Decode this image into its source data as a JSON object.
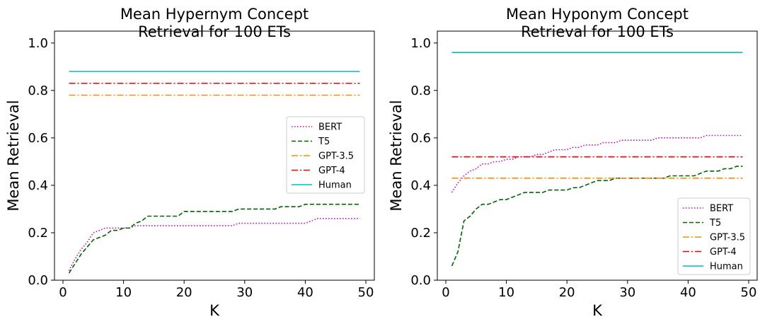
{
  "chart_data": [
    {
      "type": "line",
      "title": "Mean Hypernym Concept\nRetrieval for 100 ETs",
      "xlabel": "K",
      "ylabel": "Mean Retrieval",
      "xlim": [
        -1.4,
        51.4
      ],
      "ylim": [
        0.0,
        1.05
      ],
      "xticks": [
        0,
        10,
        20,
        30,
        40,
        50
      ],
      "yticks": [
        0.0,
        0.2,
        0.4,
        0.6,
        0.8,
        1.0
      ],
      "legend": "center-right",
      "series": [
        {
          "name": "BERT",
          "style": "dotted",
          "color": "#cc00cc",
          "x": [
            1,
            2,
            3,
            4,
            5,
            6,
            7,
            8,
            9,
            10,
            11,
            12,
            13,
            14,
            15,
            16,
            17,
            18,
            19,
            20,
            21,
            22,
            23,
            24,
            25,
            26,
            27,
            28,
            29,
            30,
            31,
            32,
            33,
            34,
            35,
            36,
            37,
            38,
            39,
            40,
            41,
            42,
            43,
            44,
            45,
            46,
            47,
            48,
            49
          ],
          "y": [
            0.04,
            0.09,
            0.13,
            0.16,
            0.2,
            0.21,
            0.22,
            0.22,
            0.22,
            0.22,
            0.22,
            0.23,
            0.23,
            0.23,
            0.23,
            0.23,
            0.23,
            0.23,
            0.23,
            0.23,
            0.23,
            0.23,
            0.23,
            0.23,
            0.23,
            0.23,
            0.23,
            0.23,
            0.24,
            0.24,
            0.24,
            0.24,
            0.24,
            0.24,
            0.24,
            0.24,
            0.24,
            0.24,
            0.24,
            0.24,
            0.25,
            0.26,
            0.26,
            0.26,
            0.26,
            0.26,
            0.26,
            0.26,
            0.26
          ]
        },
        {
          "name": "T5",
          "style": "dashed",
          "color": "#006400",
          "x": [
            1,
            2,
            3,
            4,
            5,
            6,
            7,
            8,
            9,
            10,
            11,
            12,
            13,
            14,
            15,
            16,
            17,
            18,
            19,
            20,
            21,
            22,
            23,
            24,
            25,
            26,
            27,
            28,
            29,
            30,
            31,
            32,
            33,
            34,
            35,
            36,
            37,
            38,
            39,
            40,
            41,
            42,
            43,
            44,
            45,
            46,
            47,
            48,
            49
          ],
          "y": [
            0.03,
            0.07,
            0.11,
            0.14,
            0.17,
            0.18,
            0.19,
            0.21,
            0.21,
            0.22,
            0.22,
            0.24,
            0.25,
            0.27,
            0.27,
            0.27,
            0.27,
            0.27,
            0.27,
            0.29,
            0.29,
            0.29,
            0.29,
            0.29,
            0.29,
            0.29,
            0.29,
            0.29,
            0.3,
            0.3,
            0.3,
            0.3,
            0.3,
            0.3,
            0.3,
            0.31,
            0.31,
            0.31,
            0.31,
            0.32,
            0.32,
            0.32,
            0.32,
            0.32,
            0.32,
            0.32,
            0.32,
            0.32,
            0.32
          ]
        },
        {
          "name": "GPT-3.5",
          "style": "dashdot",
          "color": "#ff8c00",
          "x": [
            1,
            49
          ],
          "y": [
            0.78,
            0.78
          ]
        },
        {
          "name": "GPT-4",
          "style": "dashdot",
          "color": "#ff0000",
          "x": [
            1,
            49
          ],
          "y": [
            0.83,
            0.83
          ]
        },
        {
          "name": "Human",
          "style": "solid",
          "color": "#00bfbf",
          "x": [
            1,
            49
          ],
          "y": [
            0.88,
            0.88
          ]
        }
      ]
    },
    {
      "type": "line",
      "title": "Mean Hyponym Concept\nRetrieval for 100 ETs",
      "xlabel": "K",
      "ylabel": "Mean Retrieval",
      "xlim": [
        -1.4,
        51.4
      ],
      "ylim": [
        0.0,
        1.05
      ],
      "xticks": [
        0,
        10,
        20,
        30,
        40,
        50
      ],
      "yticks": [
        0.0,
        0.2,
        0.4,
        0.6,
        0.8,
        1.0
      ],
      "legend": "lower-right",
      "series": [
        {
          "name": "BERT",
          "style": "dotted",
          "color": "#cc00cc",
          "x": [
            1,
            2,
            3,
            4,
            5,
            6,
            7,
            8,
            9,
            10,
            11,
            12,
            13,
            14,
            15,
            16,
            17,
            18,
            19,
            20,
            21,
            22,
            23,
            24,
            25,
            26,
            27,
            28,
            29,
            30,
            31,
            32,
            33,
            34,
            35,
            36,
            37,
            38,
            39,
            40,
            41,
            42,
            43,
            44,
            45,
            46,
            47,
            48,
            49
          ],
          "y": [
            0.37,
            0.41,
            0.44,
            0.46,
            0.47,
            0.49,
            0.49,
            0.5,
            0.5,
            0.51,
            0.51,
            0.52,
            0.52,
            0.52,
            0.53,
            0.53,
            0.54,
            0.55,
            0.55,
            0.55,
            0.56,
            0.56,
            0.57,
            0.57,
            0.57,
            0.58,
            0.58,
            0.58,
            0.59,
            0.59,
            0.59,
            0.59,
            0.59,
            0.59,
            0.6,
            0.6,
            0.6,
            0.6,
            0.6,
            0.6,
            0.6,
            0.6,
            0.61,
            0.61,
            0.61,
            0.61,
            0.61,
            0.61,
            0.61
          ]
        },
        {
          "name": "T5",
          "style": "dashed",
          "color": "#006400",
          "x": [
            1,
            2,
            3,
            4,
            5,
            6,
            7,
            8,
            9,
            10,
            11,
            12,
            13,
            14,
            15,
            16,
            17,
            18,
            19,
            20,
            21,
            22,
            23,
            24,
            25,
            26,
            27,
            28,
            29,
            30,
            31,
            32,
            33,
            34,
            35,
            36,
            37,
            38,
            39,
            40,
            41,
            42,
            43,
            44,
            45,
            46,
            47,
            48,
            49
          ],
          "y": [
            0.06,
            0.12,
            0.25,
            0.27,
            0.3,
            0.32,
            0.32,
            0.33,
            0.34,
            0.34,
            0.35,
            0.36,
            0.37,
            0.37,
            0.37,
            0.37,
            0.38,
            0.38,
            0.38,
            0.38,
            0.39,
            0.39,
            0.4,
            0.41,
            0.42,
            0.42,
            0.42,
            0.43,
            0.43,
            0.43,
            0.43,
            0.43,
            0.43,
            0.43,
            0.43,
            0.43,
            0.44,
            0.44,
            0.44,
            0.44,
            0.44,
            0.45,
            0.46,
            0.46,
            0.46,
            0.47,
            0.47,
            0.48,
            0.48
          ]
        },
        {
          "name": "GPT-3.5",
          "style": "dashdot",
          "color": "#ff8c00",
          "x": [
            1,
            49
          ],
          "y": [
            0.43,
            0.43
          ]
        },
        {
          "name": "GPT-4",
          "style": "dashdot",
          "color": "#ff0000",
          "x": [
            1,
            49
          ],
          "y": [
            0.52,
            0.52
          ]
        },
        {
          "name": "Human",
          "style": "solid",
          "color": "#00bfbf",
          "x": [
            1,
            49
          ],
          "y": [
            0.96,
            0.96
          ]
        }
      ]
    }
  ]
}
